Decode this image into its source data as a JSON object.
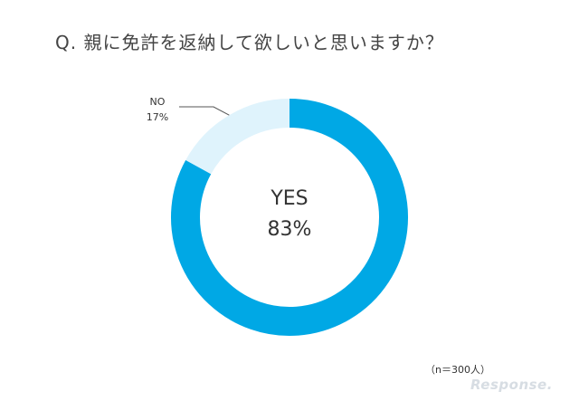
{
  "question": "Q.  親に免許を返納して欲しいと思いますか？",
  "sample_note": "（n＝300人）",
  "logo_text": "Response.",
  "colors": {
    "yes": "#00a8e5",
    "no": "#dff3fc"
  },
  "chart_data": {
    "type": "pie",
    "title": "",
    "slices": [
      {
        "label": "YES",
        "value": 83,
        "display": "83%",
        "color": "#00a8e5"
      },
      {
        "label": "NO",
        "value": 17,
        "display": "17%",
        "color": "#dff3fc"
      }
    ]
  }
}
